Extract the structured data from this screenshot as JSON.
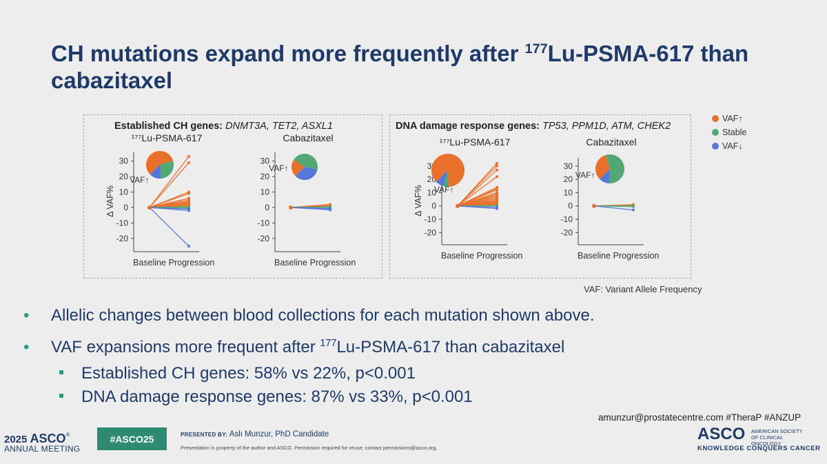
{
  "slide": {
    "title_prefix": "CH mutations expand more frequently after ",
    "title_sup": "177",
    "title_suffix_1": "Lu-PSMA-617 than",
    "title_line2": "cabazitaxel",
    "panels": [
      {
        "title_bold": "Established CH genes:",
        "title_genes": "DNMT3A, TET2, ASXL1"
      },
      {
        "title_bold": "DNA damage response genes:",
        "title_genes": "TP53, PPM1D, ATM, CHEK2"
      }
    ],
    "vaf_note": "VAF: Variant Allele Frequency",
    "bullets": [
      {
        "text_1": "Allelic changes between blood collections for each mutation shown above."
      },
      {
        "text_1": "VAF expansions more frequent after ",
        "sup": "177",
        "text_2": "Lu-PSMA-617 than cabazitaxel"
      }
    ],
    "sub_bullets": [
      "Established CH genes: 58% vs 22%, p<0.001",
      "DNA damage response genes: 87% vs 33%, p<0.001"
    ],
    "bullet_char": "•"
  },
  "footer": {
    "email": "amunzur@prostatecentre.com  #TheraP #ANZUP",
    "asco_year": "2025",
    "asco_word": "ASCO",
    "asco_meeting": "ANNUAL MEETING",
    "hashtag": "#ASCO25",
    "presented_by_label": "PRESENTED BY:",
    "presenter": "Aslı Munzur, PhD Candidate",
    "disclaimer": "Presentation is property of the author and ASCO. Permission required for reuse; contact permissions@asco.org.",
    "asco_logo": "ASCO",
    "asco_society": "AMERICAN SOCIETY OF CLINICAL ONCOLOGY",
    "asco_tagline": "KNOWLEDGE CONQUERS CANCER"
  },
  "colors": {
    "vaf_up": "#e8702a",
    "stable": "#52a874",
    "vaf_down": "#5577d9",
    "navy": "#1f3a68",
    "teal": "#2f8a74"
  },
  "chart_data": [
    {
      "type": "line",
      "panel": 0,
      "title": "¹⁷⁷Lu-PSMA-617",
      "categories": [
        "Baseline",
        "Progression"
      ],
      "ylabel": "Δ VAF%",
      "ylim": [
        -25,
        33
      ],
      "yticks": [
        30,
        20,
        10,
        0,
        -10,
        -20
      ],
      "pie_label": "VAF↑",
      "pie": {
        "VAF↑": 58,
        "Stable": 28,
        "VAF↓": 14
      },
      "lines": {
        "up": [
          33,
          29,
          10,
          9,
          6,
          5,
          4,
          3.5,
          3,
          2.5,
          2,
          1.5,
          1
        ],
        "stable": [
          0.5,
          0,
          -0.5
        ],
        "down": [
          -1,
          -2,
          -25
        ]
      }
    },
    {
      "type": "line",
      "panel": 0,
      "title": "Cabazitaxel",
      "categories": [
        "Baseline",
        "Progression"
      ],
      "ylim": [
        -25,
        33
      ],
      "yticks": [
        30,
        20,
        10,
        0,
        -10,
        -20
      ],
      "pie_label": "VAF↑",
      "pie": {
        "VAF↑": 22,
        "Stable": 44,
        "VAF↓": 34
      },
      "lines": {
        "up": [
          2,
          1.5,
          1
        ],
        "stable": [
          0.5,
          0
        ],
        "down": [
          -0.5,
          -1,
          -1.5
        ]
      }
    },
    {
      "type": "line",
      "panel": 1,
      "title": "¹⁷⁷Lu-PSMA-617",
      "categories": [
        "Baseline",
        "Progression"
      ],
      "ylabel": "Δ VAF%",
      "ylim": [
        -25,
        33
      ],
      "yticks": [
        30,
        20,
        10,
        0,
        -10,
        -20
      ],
      "pie_label": "VAF↑",
      "pie": {
        "VAF↑": 87,
        "Stable": 5,
        "VAF↓": 8
      },
      "lines": {
        "up": [
          32,
          30,
          27,
          22,
          14,
          13,
          12,
          10,
          9,
          8,
          7,
          6,
          5,
          4,
          3.5,
          3,
          2.5,
          2,
          1.5,
          1
        ],
        "stable": [
          0.3,
          0
        ],
        "down": [
          -1,
          -2
        ]
      }
    },
    {
      "type": "line",
      "panel": 1,
      "title": "Cabazitaxel",
      "categories": [
        "Baseline",
        "Progression"
      ],
      "ylim": [
        -25,
        33
      ],
      "yticks": [
        30,
        20,
        10,
        0,
        -10,
        -20
      ],
      "pie_label": "VAF↑",
      "pie": {
        "VAF↑": 33,
        "Stable": 55,
        "VAF↓": 12
      },
      "lines": {
        "up": [
          1,
          0.5
        ],
        "stable": [
          0,
          -0.5
        ],
        "down": [
          -3
        ]
      }
    }
  ],
  "legend": [
    {
      "label": "VAF↑",
      "color": "#e8702a"
    },
    {
      "label": "Stable",
      "color": "#52a874"
    },
    {
      "label": "VAF↓",
      "color": "#5577d9"
    }
  ]
}
